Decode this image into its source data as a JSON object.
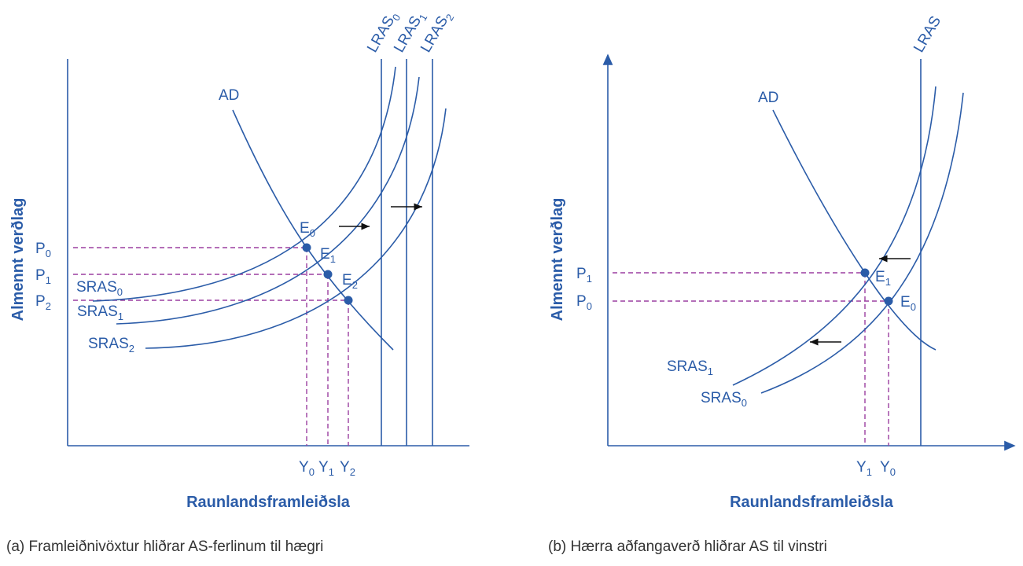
{
  "panel_a": {
    "ad_label": "AD",
    "lras_labels": [
      {
        "text": "LRAS",
        "sub": "0"
      },
      {
        "text": "LRAS",
        "sub": "1"
      },
      {
        "text": "LRAS",
        "sub": "2"
      }
    ],
    "sras_labels": [
      {
        "text": "SRAS",
        "sub": "0"
      },
      {
        "text": "SRAS",
        "sub": "1"
      },
      {
        "text": "SRAS",
        "sub": "2"
      }
    ],
    "equilibria": [
      {
        "text": "E",
        "sub": "0"
      },
      {
        "text": "E",
        "sub": "1"
      },
      {
        "text": "E",
        "sub": "2"
      }
    ],
    "price_labels": [
      {
        "text": "P",
        "sub": "0"
      },
      {
        "text": "P",
        "sub": "1"
      },
      {
        "text": "P",
        "sub": "2"
      }
    ],
    "output_labels": [
      {
        "text": "Y",
        "sub": "0"
      },
      {
        "text": "Y",
        "sub": "1"
      },
      {
        "text": "Y",
        "sub": "2"
      }
    ],
    "y_axis_label": "Almennt verðlag",
    "x_axis_label": "Raunlandsframleiðsla",
    "caption": "(a) Framleiðnivöxtur hliðrar AS-ferlinum til hægri"
  },
  "panel_b": {
    "ad_label": "AD",
    "lras_label": "LRAS",
    "sras_labels": [
      {
        "text": "SRAS",
        "sub": "1"
      },
      {
        "text": "SRAS",
        "sub": "0"
      }
    ],
    "equilibria": [
      {
        "text": "E",
        "sub": "1"
      },
      {
        "text": "E",
        "sub": "0"
      }
    ],
    "price_labels": [
      {
        "text": "P",
        "sub": "1"
      },
      {
        "text": "P",
        "sub": "0"
      }
    ],
    "output_labels": [
      {
        "text": "Y",
        "sub": "1"
      },
      {
        "text": "Y",
        "sub": "0"
      }
    ],
    "y_axis_label": "Almennt verðlag",
    "x_axis_label": "Raunlandsframleiðsla",
    "caption": "(b) Hærra aðfangaverð hliðrar AS til vinstri"
  }
}
